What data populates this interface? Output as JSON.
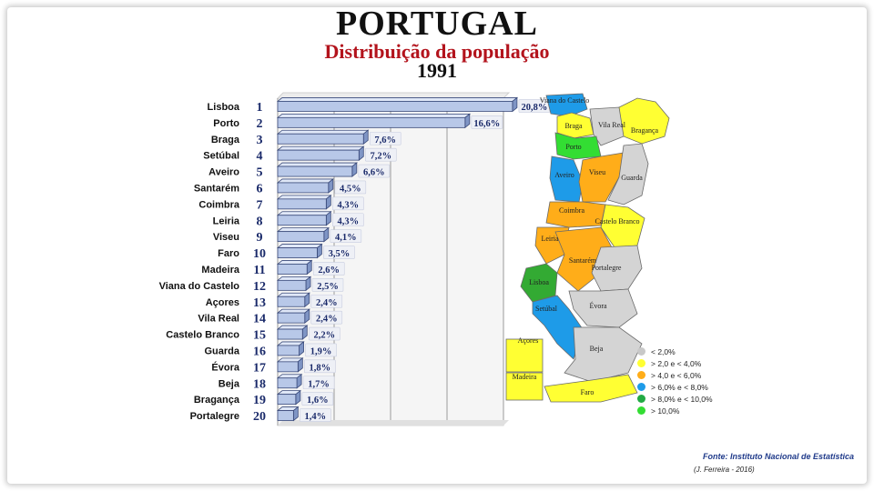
{
  "title": "PORTUGAL",
  "subtitle": "Distribuição da população",
  "year": "1991",
  "chart_data": {
    "type": "bar",
    "orientation": "horizontal",
    "categories": [
      "Lisboa",
      "Porto",
      "Braga",
      "Setúbal",
      "Aveiro",
      "Santarém",
      "Coimbra",
      "Leiria",
      "Viseu",
      "Faro",
      "Madeira",
      "Viana do Castelo",
      "Açores",
      "Vila Real",
      "Castelo Branco",
      "Guarda",
      "Évora",
      "Beja",
      "Bragança",
      "Portalegre"
    ],
    "ranks": [
      "1",
      "2",
      "3",
      "4",
      "5",
      "6",
      "7",
      "8",
      "9",
      "10",
      "11",
      "12",
      "13",
      "14",
      "15",
      "16",
      "17",
      "18",
      "19",
      "20"
    ],
    "values": [
      20.8,
      16.6,
      7.6,
      7.2,
      6.6,
      4.5,
      4.3,
      4.3,
      4.1,
      3.5,
      2.6,
      2.5,
      2.4,
      2.4,
      2.2,
      1.9,
      1.8,
      1.7,
      1.6,
      1.4
    ],
    "value_labels": [
      "20,8%",
      "16,6%",
      "7,6%",
      "7,2%",
      "6,6%",
      "4,5%",
      "4,3%",
      "4,3%",
      "4,1%",
      "3,5%",
      "2,6%",
      "2,5%",
      "2,4%",
      "2,4%",
      "2,2%",
      "1,9%",
      "1,8%",
      "1,7%",
      "1,6%",
      "1,4%"
    ],
    "xlim": [
      0,
      20
    ],
    "grid": true,
    "bar_color": "#b8c8e8",
    "bar_edge": "#3a4a7a"
  },
  "map": {
    "regions": [
      {
        "name": "Viana do Castelo",
        "color": "#ffff33"
      },
      {
        "name": "Braga",
        "color": "#1e9be8"
      },
      {
        "name": "Vila Real",
        "color": "#ffff33"
      },
      {
        "name": "Bragança",
        "color": "#d4d4d4"
      },
      {
        "name": "Porto",
        "color": "#33dd33"
      },
      {
        "name": "Aveiro",
        "color": "#1e9be8"
      },
      {
        "name": "Viseu",
        "color": "#ffad19"
      },
      {
        "name": "Guarda",
        "color": "#d4d4d4"
      },
      {
        "name": "Coimbra",
        "color": "#ffad19"
      },
      {
        "name": "Castelo Branco",
        "color": "#ffff33"
      },
      {
        "name": "Leiria",
        "color": "#ffad19"
      },
      {
        "name": "Santarém",
        "color": "#ffad19"
      },
      {
        "name": "Portalegre",
        "color": "#d4d4d4"
      },
      {
        "name": "Lisboa",
        "color": "#33aa33"
      },
      {
        "name": "Setúbal",
        "color": "#1e9be8"
      },
      {
        "name": "Évora",
        "color": "#d4d4d4"
      },
      {
        "name": "Beja",
        "color": "#d4d4d4"
      },
      {
        "name": "Faro",
        "color": "#ffff33"
      },
      {
        "name": "Açores",
        "color": "#ffff33"
      },
      {
        "name": "Madeira",
        "color": "#ffff33"
      }
    ],
    "legend": [
      {
        "label": "< 2,0%",
        "color": "#c8c8c8"
      },
      {
        "label": "> 2,0 e < 4,0%",
        "color": "#ffff33"
      },
      {
        "label": "> 4,0 e < 6,0%",
        "color": "#ffad19"
      },
      {
        "label": "> 6,0% e < 8,0%",
        "color": "#1e9be8"
      },
      {
        "label": "> 8,0% e < 10,0%",
        "color": "#22aa44"
      },
      {
        "label": "> 10,0%",
        "color": "#33dd33"
      }
    ]
  },
  "source": "Fonte: Instituto Nacional de Estatística",
  "author": "(J. Ferreira - 2016)"
}
